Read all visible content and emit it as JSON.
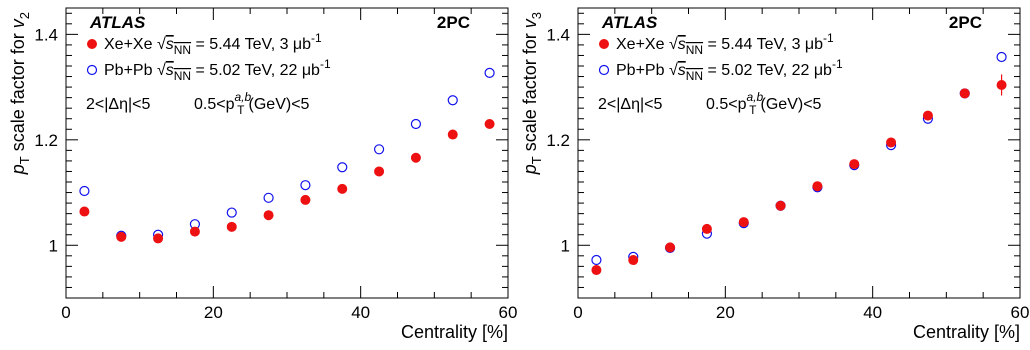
{
  "chart_data": [
    {
      "type": "scatter",
      "experiment": "ATLAS",
      "tag": "2PC",
      "xlabel": "Centrality [%]",
      "ylabel_main": "p",
      "ylabel_sub": "T",
      "ylabel_rest": " scale factor for ",
      "ylabel_v": "v",
      "ylabel_vsub": "2",
      "xlim": [
        0,
        60
      ],
      "ylim": [
        0.9,
        1.45
      ],
      "xticks": [
        0,
        20,
        40,
        60
      ],
      "xtick_labels": [
        "0",
        "20",
        "40",
        "60"
      ],
      "yticks": [
        1.0,
        1.2,
        1.4
      ],
      "ytick_labels": [
        "1",
        "1.2",
        "1.4"
      ],
      "cuts": "2<|Δη|<5",
      "cut_pt": "0.5<p",
      "cut_pt_sub": "T",
      "cut_pt_sup": "a,b",
      "cut_pt_rest": "(GeV)<5",
      "x": [
        2.5,
        7.5,
        12.5,
        17.5,
        22.5,
        27.5,
        32.5,
        37.5,
        42.5,
        47.5,
        52.5,
        57.5
      ],
      "series": [
        {
          "name": "Xe+Xe",
          "label_prefix": "Xe+Xe ",
          "label_suffix": " = 5.44 TeV, 3 μb",
          "label_sup": "-1",
          "marker": "filled-circle",
          "color": "#ee1111",
          "values": [
            1.064,
            1.016,
            1.013,
            1.026,
            1.035,
            1.057,
            1.086,
            1.107,
            1.14,
            1.166,
            1.21,
            1.23
          ],
          "errors": [
            0,
            0,
            0,
            0,
            0,
            0,
            0,
            0,
            0,
            0,
            0,
            0
          ]
        },
        {
          "name": "Pb+Pb",
          "label_prefix": "Pb+Pb ",
          "label_suffix": " = 5.02 TeV, 22 μb",
          "label_sup": "-1",
          "marker": "open-circle",
          "color": "#1111ee",
          "values": [
            1.103,
            1.018,
            1.02,
            1.04,
            1.062,
            1.09,
            1.114,
            1.148,
            1.182,
            1.23,
            1.275,
            1.327
          ],
          "errors": [
            0,
            0,
            0,
            0,
            0,
            0,
            0,
            0,
            0,
            0,
            0,
            0
          ]
        }
      ],
      "sqrt_s": "s",
      "sqrt_s_sub": "NN"
    },
    {
      "type": "scatter",
      "experiment": "ATLAS",
      "tag": "2PC",
      "xlabel": "Centrality [%]",
      "ylabel_main": "p",
      "ylabel_sub": "T",
      "ylabel_rest": " scale factor for ",
      "ylabel_v": "v",
      "ylabel_vsub": "3",
      "xlim": [
        0,
        60
      ],
      "ylim": [
        0.9,
        1.45
      ],
      "xticks": [
        0,
        20,
        40,
        60
      ],
      "xtick_labels": [
        "0",
        "20",
        "40",
        "60"
      ],
      "yticks": [
        1.0,
        1.2,
        1.4
      ],
      "ytick_labels": [
        "1",
        "1.2",
        "1.4"
      ],
      "cuts": "2<|Δη|<5",
      "cut_pt": "0.5<p",
      "cut_pt_sub": "T",
      "cut_pt_sup": "a,b",
      "cut_pt_rest": "(GeV)<5",
      "x": [
        2.5,
        7.5,
        12.5,
        17.5,
        22.5,
        27.5,
        32.5,
        37.5,
        42.5,
        47.5,
        52.5,
        57.5
      ],
      "series": [
        {
          "name": "Xe+Xe",
          "label_prefix": "Xe+Xe ",
          "label_suffix": " = 5.44 TeV, 3 μb",
          "label_sup": "-1",
          "marker": "filled-circle",
          "color": "#ee1111",
          "values": [
            0.953,
            0.972,
            0.996,
            1.031,
            1.044,
            1.075,
            1.112,
            1.154,
            1.195,
            1.246,
            1.288,
            1.304
          ],
          "errors": [
            0,
            0,
            0,
            0,
            0,
            0,
            0,
            0,
            0,
            0,
            0.008,
            0.02
          ]
        },
        {
          "name": "Pb+Pb",
          "label_prefix": "Pb+Pb ",
          "label_suffix": " = 5.02 TeV, 22 μb",
          "label_sup": "-1",
          "marker": "open-circle",
          "color": "#1111ee",
          "values": [
            0.972,
            0.978,
            0.995,
            1.022,
            1.042,
            1.075,
            1.11,
            1.152,
            1.19,
            1.24,
            1.288,
            1.357
          ],
          "errors": [
            0,
            0,
            0,
            0,
            0,
            0,
            0,
            0,
            0,
            0,
            0,
            0
          ]
        }
      ],
      "sqrt_s": "s",
      "sqrt_s_sub": "NN"
    }
  ]
}
